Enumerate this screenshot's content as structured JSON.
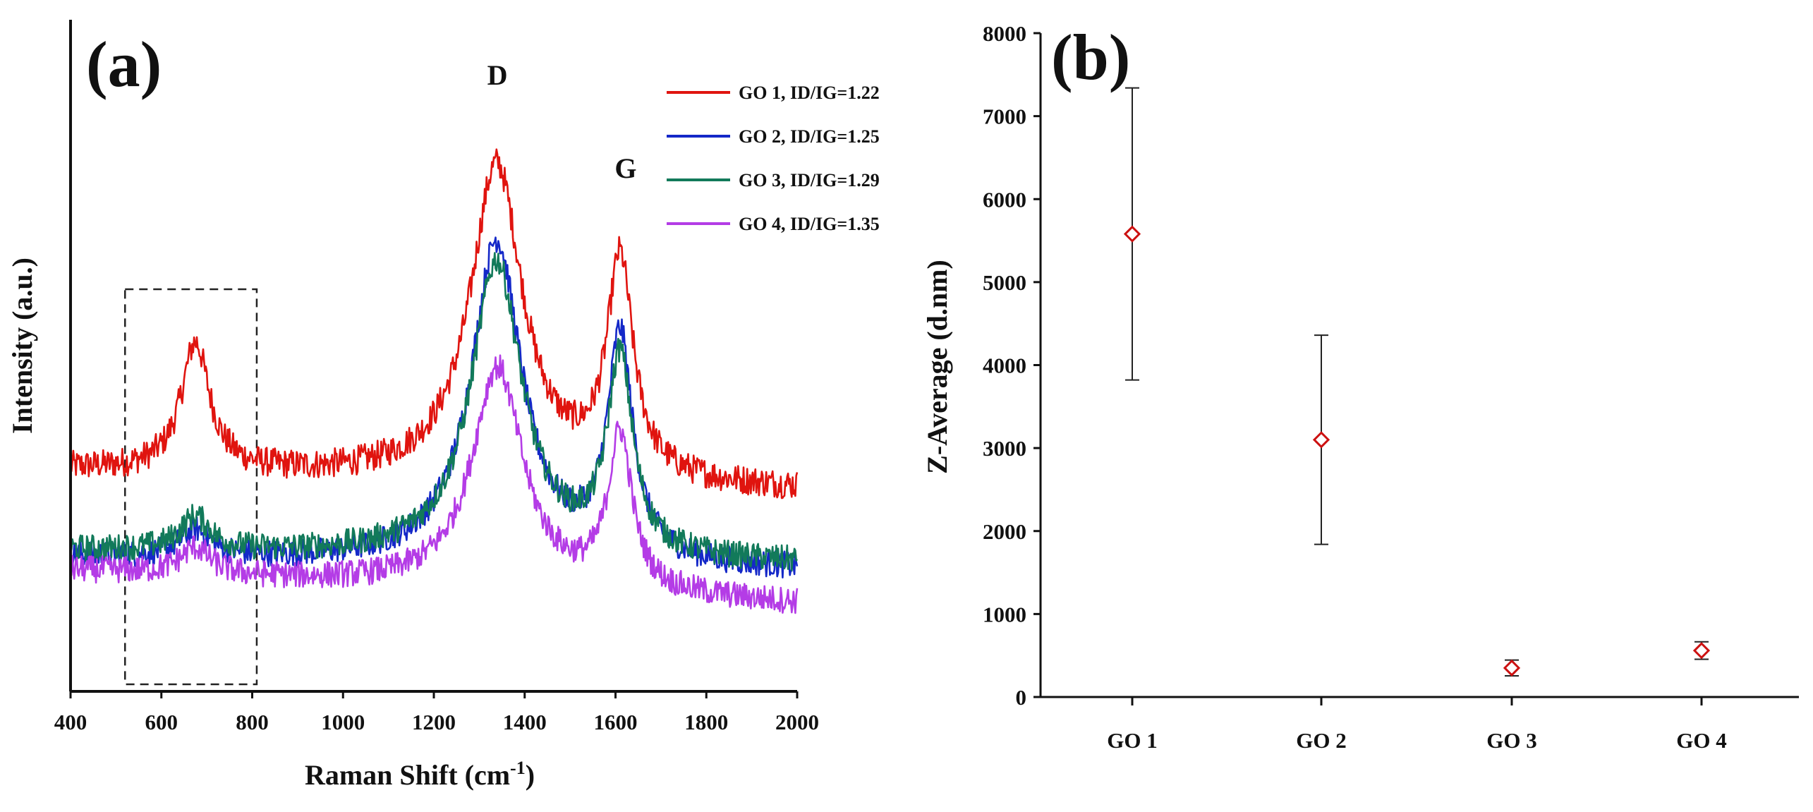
{
  "chart_data": [
    {
      "panel": "(a)",
      "type": "line",
      "xlabel": "Raman Shift (cm",
      "xlabel_sup": "-1",
      "xlabel_tail": ")",
      "ylabel": "Intensity (a.u.)",
      "xlim": [
        400,
        2000
      ],
      "x_ticks": [
        400,
        600,
        800,
        1000,
        1200,
        1400,
        1600,
        1800,
        2000
      ],
      "y_ticks_shown": false,
      "inset_box_x_range": [
        520,
        810
      ],
      "peak_annotations": [
        {
          "label": "D",
          "x": 1340
        },
        {
          "label": "G",
          "x": 1610
        }
      ],
      "legend_position": "top-right",
      "series": [
        {
          "name": "GO 1, ID/IG=1.22",
          "color": "#e0140f",
          "baseline": 0.33,
          "end_level": 0.3,
          "peaks": [
            {
              "x": 675,
              "height": 0.19,
              "width": 38
            },
            {
              "x": 1338,
              "height": 0.47,
              "width": 70
            },
            {
              "x": 1610,
              "height": 0.32,
              "width": 35
            }
          ],
          "noise": 0.022
        },
        {
          "name": "GO 2, ID/IG=1.25",
          "color": "#1428c8",
          "baseline": 0.2,
          "end_level": 0.18,
          "peaks": [
            {
              "x": 675,
              "height": 0.04,
              "width": 40
            },
            {
              "x": 1338,
              "height": 0.48,
              "width": 68
            },
            {
              "x": 1610,
              "height": 0.33,
              "width": 34
            }
          ],
          "noise": 0.02
        },
        {
          "name": "GO 3, ID/IG=1.29",
          "color": "#127a5a",
          "baseline": 0.21,
          "end_level": 0.19,
          "peaks": [
            {
              "x": 675,
              "height": 0.05,
              "width": 40
            },
            {
              "x": 1338,
              "height": 0.44,
              "width": 68
            },
            {
              "x": 1610,
              "height": 0.29,
              "width": 34
            }
          ],
          "noise": 0.02
        },
        {
          "name": "GO 4, ID/IG=1.35",
          "color": "#b43ce6",
          "baseline": 0.18,
          "end_level": 0.13,
          "peaks": [
            {
              "x": 675,
              "height": 0.04,
              "width": 40
            },
            {
              "x": 1340,
              "height": 0.33,
              "width": 68
            },
            {
              "x": 1610,
              "height": 0.23,
              "width": 32
            }
          ],
          "noise": 0.02
        }
      ]
    },
    {
      "panel": "(b)",
      "type": "scatter",
      "ylabel": "Z-Average (d.nm)",
      "ylim": [
        0,
        8000
      ],
      "y_ticks": [
        0,
        1000,
        2000,
        3000,
        4000,
        5000,
        6000,
        7000,
        8000
      ],
      "categories": [
        "GO 1",
        "GO 2",
        "GO 3",
        "GO 4"
      ],
      "values": [
        5580,
        3100,
        350,
        560
      ],
      "errors": [
        1760,
        1260,
        95,
        105
      ],
      "marker": "diamond",
      "marker_color": "#cc1111"
    }
  ]
}
